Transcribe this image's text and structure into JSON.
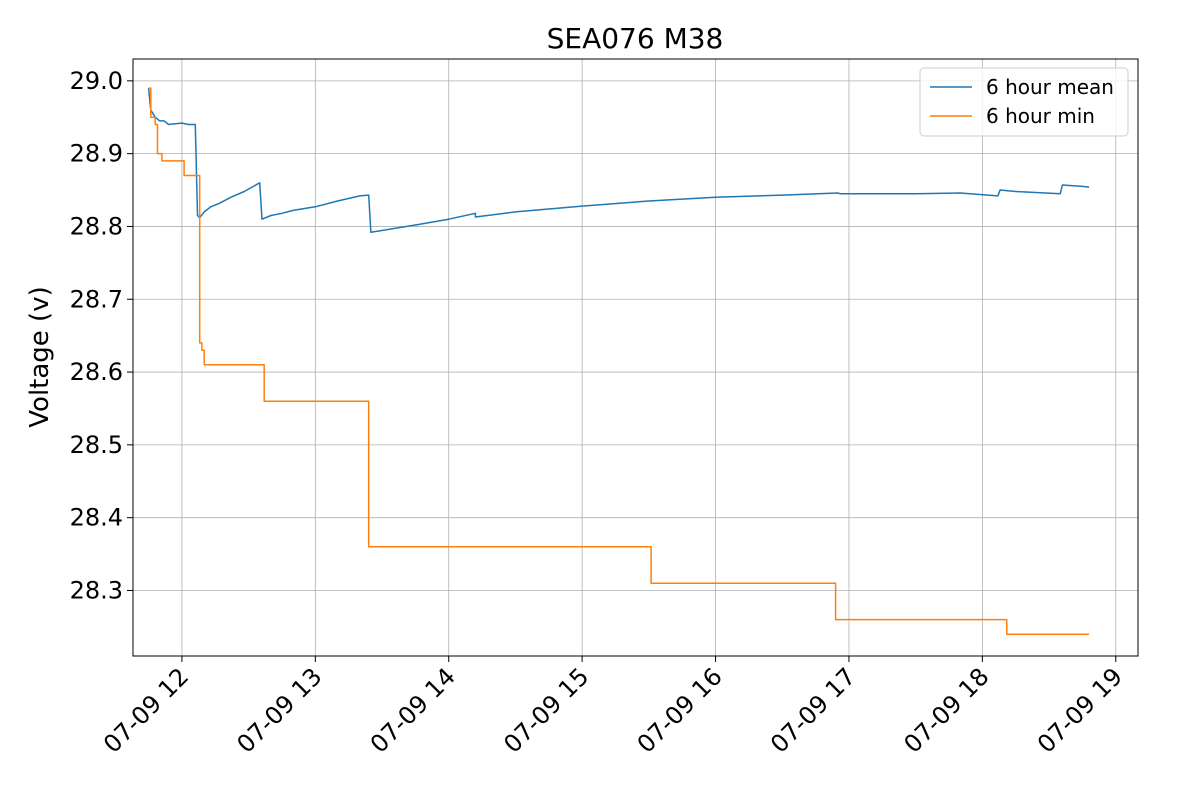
{
  "chart_data": {
    "type": "line",
    "title": "SEA076 M38",
    "xlabel": "",
    "ylabel": "Voltage (v)",
    "xlim": [
      "2024-07-09 11:38",
      "2024-07-09 19:10"
    ],
    "ylim": [
      28.21,
      29.03
    ],
    "grid": true,
    "legend_position": "top-right",
    "x_ticks": [
      "07-09 12",
      "07-09 13",
      "07-09 14",
      "07-09 15",
      "07-09 16",
      "07-09 17",
      "07-09 18",
      "07-09 19"
    ],
    "y_ticks": [
      "28.3",
      "28.4",
      "28.5",
      "28.6",
      "28.7",
      "28.8",
      "28.9",
      "29.0"
    ],
    "series": [
      {
        "name": "6 hour mean",
        "color": "#1f77b4",
        "style": "line",
        "x": [
          "2024-07-09 11:45",
          "2024-07-09 11:46",
          "2024-07-09 11:48",
          "2024-07-09 11:50",
          "2024-07-09 11:52",
          "2024-07-09 11:54",
          "2024-07-09 11:57",
          "2024-07-09 12:00",
          "2024-07-09 12:03",
          "2024-07-09 12:06",
          "2024-07-09 12:07",
          "2024-07-09 12:08",
          "2024-07-09 12:10",
          "2024-07-09 12:13",
          "2024-07-09 12:17",
          "2024-07-09 12:22",
          "2024-07-09 12:28",
          "2024-07-09 12:35",
          "2024-07-09 12:36",
          "2024-07-09 12:40",
          "2024-07-09 12:45",
          "2024-07-09 12:50",
          "2024-07-09 13:00",
          "2024-07-09 13:10",
          "2024-07-09 13:20",
          "2024-07-09 13:24",
          "2024-07-09 13:25",
          "2024-07-09 13:35",
          "2024-07-09 13:45",
          "2024-07-09 14:00",
          "2024-07-09 14:12",
          "2024-07-09 14:12",
          "2024-07-09 14:30",
          "2024-07-09 15:00",
          "2024-07-09 15:30",
          "2024-07-09 15:30",
          "2024-07-09 16:00",
          "2024-07-09 16:30",
          "2024-07-09 16:55",
          "2024-07-09 16:56",
          "2024-07-09 17:30",
          "2024-07-09 17:50",
          "2024-07-09 18:07",
          "2024-07-09 18:08",
          "2024-07-09 18:15",
          "2024-07-09 18:35",
          "2024-07-09 18:36",
          "2024-07-09 18:45",
          "2024-07-09 18:48"
        ],
        "y": [
          28.99,
          28.96,
          28.95,
          28.945,
          28.945,
          28.94,
          28.941,
          28.942,
          28.94,
          28.94,
          28.815,
          28.812,
          28.82,
          28.827,
          28.832,
          28.84,
          28.848,
          28.86,
          28.81,
          28.815,
          28.818,
          28.822,
          28.827,
          28.835,
          28.842,
          28.843,
          28.792,
          28.797,
          28.802,
          28.81,
          28.818,
          28.813,
          28.82,
          28.828,
          28.835,
          28.835,
          28.84,
          28.843,
          28.846,
          28.845,
          28.845,
          28.846,
          28.842,
          28.85,
          28.848,
          28.845,
          28.857,
          28.855,
          28.854
        ]
      },
      {
        "name": "6 hour min",
        "color": "#ff7f0e",
        "style": "step",
        "x": [
          "2024-07-09 11:45",
          "2024-07-09 11:46",
          "2024-07-09 11:48",
          "2024-07-09 11:49",
          "2024-07-09 11:49",
          "2024-07-09 11:51",
          "2024-07-09 11:51",
          "2024-07-09 12:01",
          "2024-07-09 12:01",
          "2024-07-09 12:08",
          "2024-07-09 12:08",
          "2024-07-09 12:09",
          "2024-07-09 12:10",
          "2024-07-09 12:36",
          "2024-07-09 12:37",
          "2024-07-09 13:24",
          "2024-07-09 13:24",
          "2024-07-09 15:31",
          "2024-07-09 15:31",
          "2024-07-09 16:54",
          "2024-07-09 16:54",
          "2024-07-09 18:10",
          "2024-07-09 18:11",
          "2024-07-09 18:48"
        ],
        "y": [
          28.99,
          28.95,
          28.94,
          28.94,
          28.9,
          28.9,
          28.89,
          28.89,
          28.87,
          28.87,
          28.64,
          28.63,
          28.61,
          28.61,
          28.56,
          28.56,
          28.36,
          28.36,
          28.31,
          28.31,
          28.26,
          28.26,
          28.24,
          28.24
        ]
      }
    ]
  }
}
